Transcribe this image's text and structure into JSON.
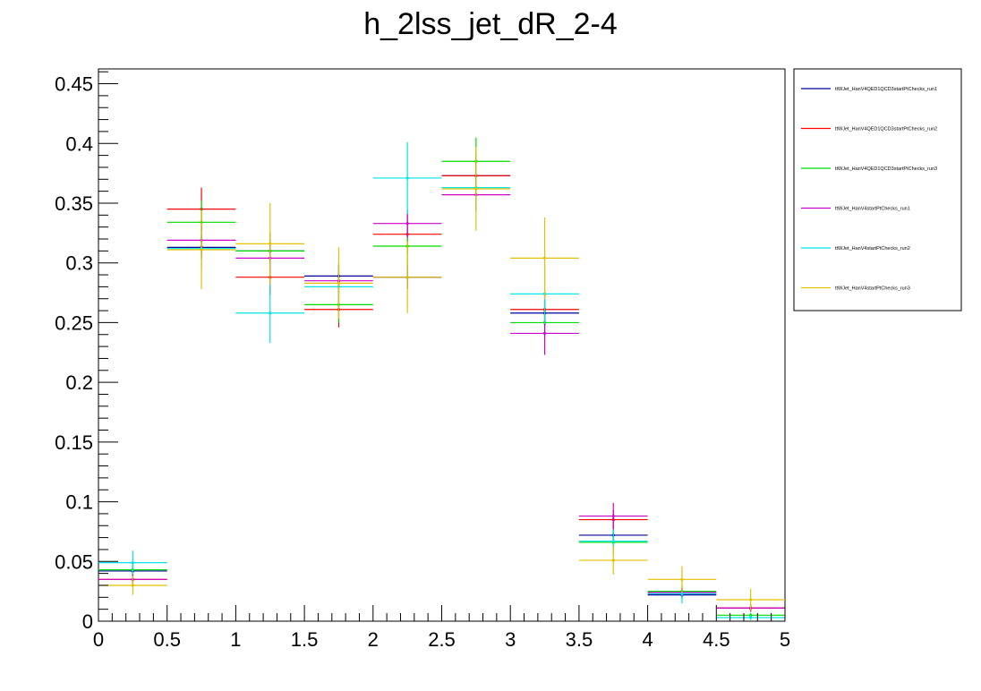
{
  "chart_data": {
    "type": "scatter",
    "title": "h_2lss_jet_dR_2-4",
    "xlabel": "",
    "ylabel": "",
    "xlim": [
      0,
      5
    ],
    "ylim": [
      0,
      0.4624
    ],
    "xticks": [
      "0",
      "0.5",
      "1",
      "1.5",
      "2",
      "2.5",
      "3",
      "3.5",
      "4",
      "4.5",
      "5"
    ],
    "yticks": [
      "0",
      "0.05",
      "0.1",
      "0.15",
      "0.2",
      "0.25",
      "0.3",
      "0.35",
      "0.4",
      "0.45"
    ],
    "bin_edges": [
      0,
      0.5,
      1,
      1.5,
      2,
      2.5,
      3,
      3.5,
      4,
      4.5,
      5
    ],
    "legend_position": "right",
    "series": [
      {
        "name": "ttWJet_HanV4QED1QCD3startPtChecks_run1",
        "color": "#000099",
        "values": [
          0.042,
          0.313,
          0.31,
          0.289,
          0.288,
          0.373,
          0.258,
          0.072,
          0.022,
          0.011
        ],
        "errors": [
          0.005,
          0.01,
          0.01,
          0.01,
          0.01,
          0.011,
          0.01,
          0.005,
          0.003,
          0.002
        ]
      },
      {
        "name": "ttWJet_HanV4QED1QCD3startPtChecks_run2",
        "color": "#ff0000",
        "values": [
          0.035,
          0.345,
          0.288,
          0.261,
          0.324,
          0.373,
          0.261,
          0.085,
          0.024,
          0.011
        ],
        "errors": [
          0.005,
          0.018,
          0.015,
          0.015,
          0.016,
          0.017,
          0.015,
          0.008,
          0.004,
          0.003
        ]
      },
      {
        "name": "ttWJet_HanV4QED1QCD3startPtChecks_run3",
        "color": "#00dd00",
        "values": [
          0.043,
          0.334,
          0.31,
          0.265,
          0.314,
          0.385,
          0.25,
          0.066,
          0.025,
          0.005
        ],
        "errors": [
          0.005,
          0.018,
          0.015,
          0.015,
          0.016,
          0.02,
          0.015,
          0.008,
          0.004,
          0.002
        ]
      },
      {
        "name": "ttWJet_HanV4startPtChecks_run1",
        "color": "#cc00cc",
        "values": [
          0.035,
          0.319,
          0.304,
          0.285,
          0.333,
          0.357,
          0.241,
          0.088,
          0.024,
          0.011
        ],
        "errors": [
          0.005,
          0.012,
          0.012,
          0.012,
          0.012,
          0.013,
          0.018,
          0.011,
          0.004,
          0.003
        ]
      },
      {
        "name": "ttWJet_HanV4startPtChecks_run2",
        "color": "#00e5e5",
        "values": [
          0.049,
          0.312,
          0.258,
          0.28,
          0.371,
          0.363,
          0.274,
          0.067,
          0.023,
          0.003
        ],
        "errors": [
          0.01,
          0.018,
          0.025,
          0.02,
          0.03,
          0.02,
          0.025,
          0.01,
          0.008,
          0.002
        ]
      },
      {
        "name": "ttWJet_HanV4startPtChecks_run3",
        "color": "#e5c000",
        "values": [
          0.03,
          0.311,
          0.316,
          0.283,
          0.288,
          0.362,
          0.304,
          0.051,
          0.035,
          0.018
        ],
        "errors": [
          0.008,
          0.033,
          0.034,
          0.03,
          0.03,
          0.035,
          0.034,
          0.012,
          0.011,
          0.009
        ]
      }
    ]
  }
}
